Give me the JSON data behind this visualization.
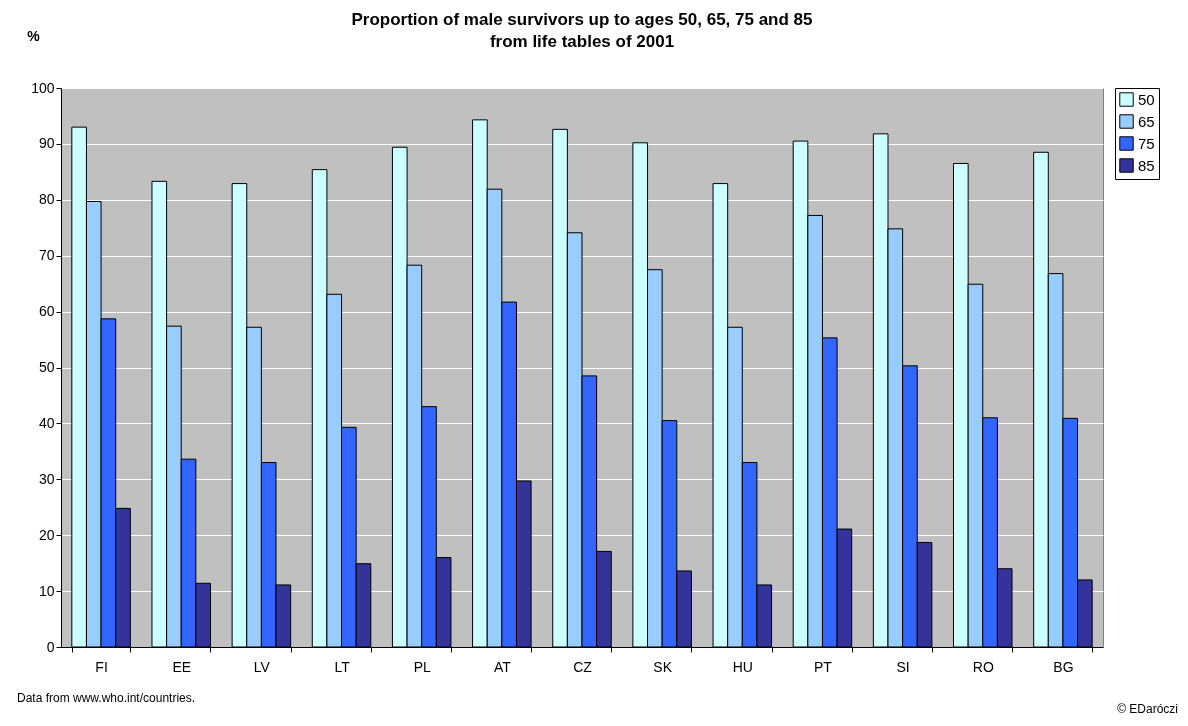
{
  "chart_data": {
    "type": "bar",
    "title": "Proportion of male survivors up to ages 50, 65, 75 and 85\nfrom life tables of 2001",
    "ylabel": "%",
    "categories": [
      "FI",
      "EE",
      "LV",
      "LT",
      "PL",
      "AT",
      "CZ",
      "SK",
      "HU",
      "PT",
      "SI",
      "RO",
      "BG"
    ],
    "series": [
      {
        "name": "50",
        "color": "#ccffff",
        "values": [
          93,
          83.3,
          82.9,
          85.4,
          89.4,
          94.3,
          92.6,
          90.2,
          82.9,
          90.5,
          91.8,
          86.5,
          88.5
        ]
      },
      {
        "name": "65",
        "color": "#99ccff",
        "values": [
          79.7,
          57.4,
          57.2,
          63.1,
          68.3,
          81.9,
          74.1,
          67.5,
          57.2,
          77.2,
          74.8,
          64.9,
          66.8
        ]
      },
      {
        "name": "75",
        "color": "#3366ff",
        "values": [
          58.7,
          33.6,
          33,
          39.3,
          43,
          61.7,
          48.5,
          40.5,
          33,
          55.3,
          50.3,
          41,
          40.9
        ]
      },
      {
        "name": "85",
        "color": "#333399",
        "values": [
          24.8,
          11.4,
          11.1,
          14.9,
          16,
          29.7,
          17.1,
          13.6,
          11.1,
          21.1,
          18.7,
          14,
          12
        ]
      }
    ],
    "ylim": [
      0,
      100
    ],
    "yticks": [
      0,
      10,
      20,
      30,
      40,
      50,
      60,
      70,
      80,
      90,
      100
    ],
    "grid": "y",
    "legend": "right",
    "annotations": [
      "Data from www.who.int/countries.",
      "© EDaróczi"
    ]
  }
}
